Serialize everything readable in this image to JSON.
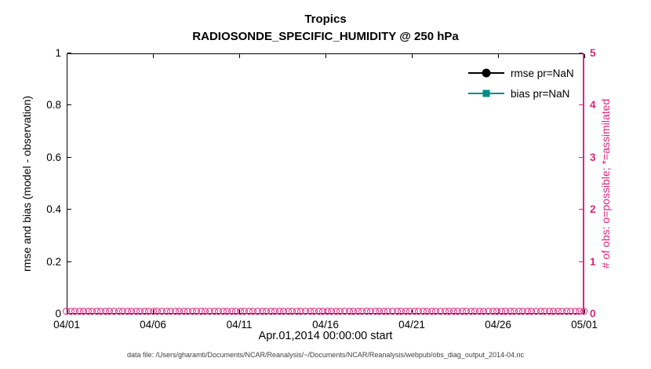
{
  "title": {
    "line1": "Tropics",
    "line2": "RADIOSONDE_SPECIFIC_HUMIDITY @ 250 hPa"
  },
  "axes": {
    "left": {
      "label": "rmse and bias (model - observation)",
      "ticks": [
        "0",
        "0.2",
        "0.4",
        "0.6",
        "0.8",
        "1"
      ],
      "range": [
        0,
        1
      ],
      "color": "#000000"
    },
    "right": {
      "label": "# of obs: o=possible; *=assimilated",
      "ticks": [
        "0",
        "1",
        "2",
        "3",
        "4",
        "5"
      ],
      "range": [
        0,
        5
      ],
      "color": "#dc267f"
    },
    "x": {
      "label": "Apr.01,2014 00:00:00 start",
      "ticks": [
        "04/01",
        "04/06",
        "04/11",
        "04/16",
        "04/21",
        "04/26",
        "05/01"
      ]
    }
  },
  "legend": [
    {
      "label": "rmse pr=NaN",
      "color": "#000000",
      "marker": "circle"
    },
    {
      "label": "bias pr=NaN",
      "color": "#008b8b",
      "marker": "square"
    }
  ],
  "caption": "data file: /Users/gharamti/Documents/NCAR/Reanalysis/~/Documents/NCAR/Reanalysis/webpub/obs_diag_output_2014-04.nc",
  "chart_data": {
    "type": "line",
    "title": "Tropics",
    "subtitle": "RADIOSONDE_SPECIFIC_HUMIDITY @ 250 hPa",
    "x_tick_labels": [
      "04/01",
      "04/06",
      "04/11",
      "04/16",
      "04/21",
      "04/26",
      "05/01"
    ],
    "x_span_days": 30,
    "xlabel": "Apr.01,2014 00:00:00 start",
    "left_axis": {
      "label": "rmse and bias (model - observation)",
      "range": [
        0,
        1
      ],
      "grid": false
    },
    "right_axis": {
      "label": "# of obs: o=possible; *=assimilated",
      "range": [
        0,
        5
      ],
      "grid": false
    },
    "legend_position": "top-right-inside",
    "series": [
      {
        "name": "rmse pr=NaN",
        "axis": "left",
        "values": "NaN (no curve plotted)",
        "color": "#000000",
        "marker": "filled-circle"
      },
      {
        "name": "bias pr=NaN",
        "axis": "left",
        "values": "NaN (no curve plotted)",
        "color": "#008b8b",
        "marker": "filled-square"
      },
      {
        "name": "obs possible (o markers)",
        "axis": "right",
        "value_constant": 0,
        "n_points": 120,
        "color": "#dc267f",
        "marker": "open-circle"
      }
    ]
  }
}
